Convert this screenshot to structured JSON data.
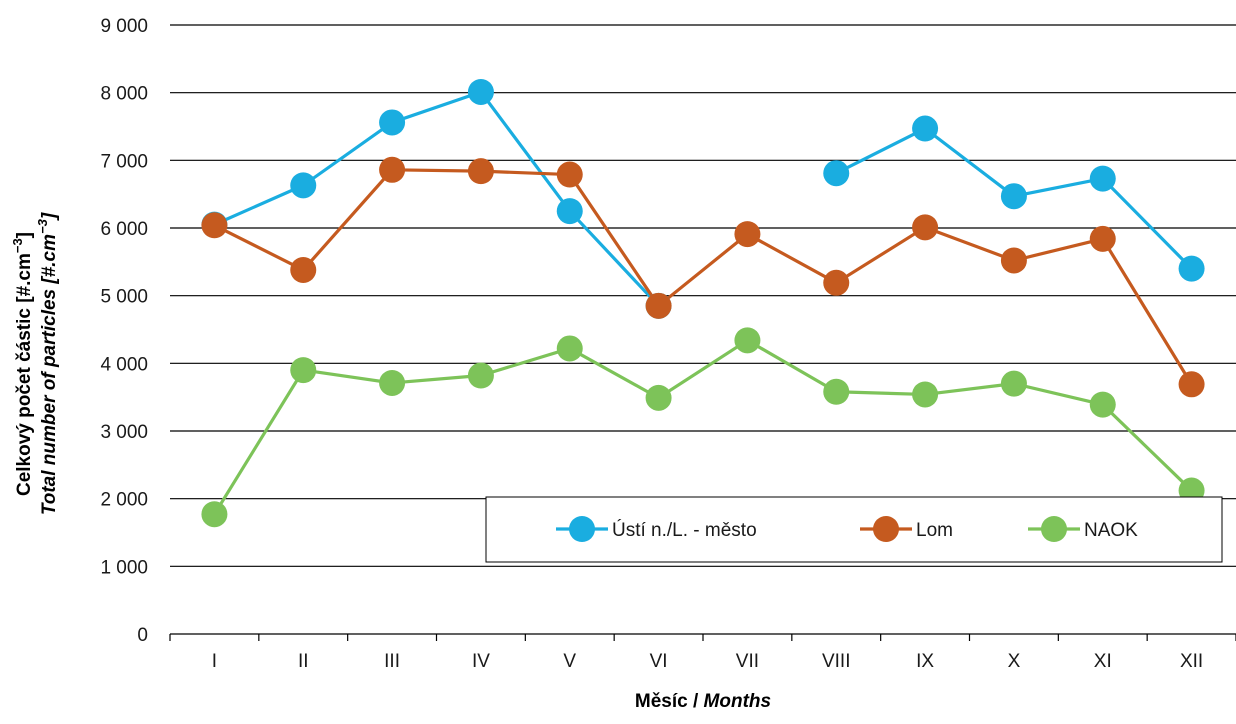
{
  "chart_data": {
    "type": "line",
    "categories": [
      "I",
      "II",
      "III",
      "IV",
      "V",
      "VI",
      "VII",
      "VIII",
      "IX",
      "X",
      "XI",
      "XII"
    ],
    "ylim": [
      0,
      9000
    ],
    "ytick_step": 1000,
    "ytick_labels": [
      "0",
      "1 000",
      "2 000",
      "3 000",
      "4 000",
      "5 000",
      "6 000",
      "7 000",
      "8 000",
      "9 000"
    ],
    "grid": true,
    "ylabel_line1": "Celkový počet částic [#.cm",
    "ylabel_line1_sup": "−3",
    "ylabel_line1_end": "]",
    "ylabel_line2": "Total number of particles  [#.cm",
    "ylabel_line2_sup": "−3",
    "ylabel_line2_end": "]",
    "xlabel_main": "Měsíc / ",
    "xlabel_italic": "Months",
    "legend_position": "lower-right",
    "series": [
      {
        "name": "Ústí n./L. - město",
        "color": "#1AADE0",
        "values": [
          6050,
          6630,
          7560,
          8010,
          6250,
          4850,
          null,
          6810,
          7470,
          6470,
          6730,
          5400
        ]
      },
      {
        "name": "Lom",
        "color": "#C55A1F",
        "values": [
          6040,
          5380,
          6860,
          6840,
          6790,
          4850,
          5910,
          5190,
          6010,
          5520,
          5840,
          3690
        ]
      },
      {
        "name": "NAOK",
        "color": "#7DC359",
        "values": [
          1770,
          3900,
          3710,
          3820,
          4220,
          3490,
          4340,
          3580,
          3540,
          3700,
          3390,
          2120
        ]
      }
    ]
  }
}
